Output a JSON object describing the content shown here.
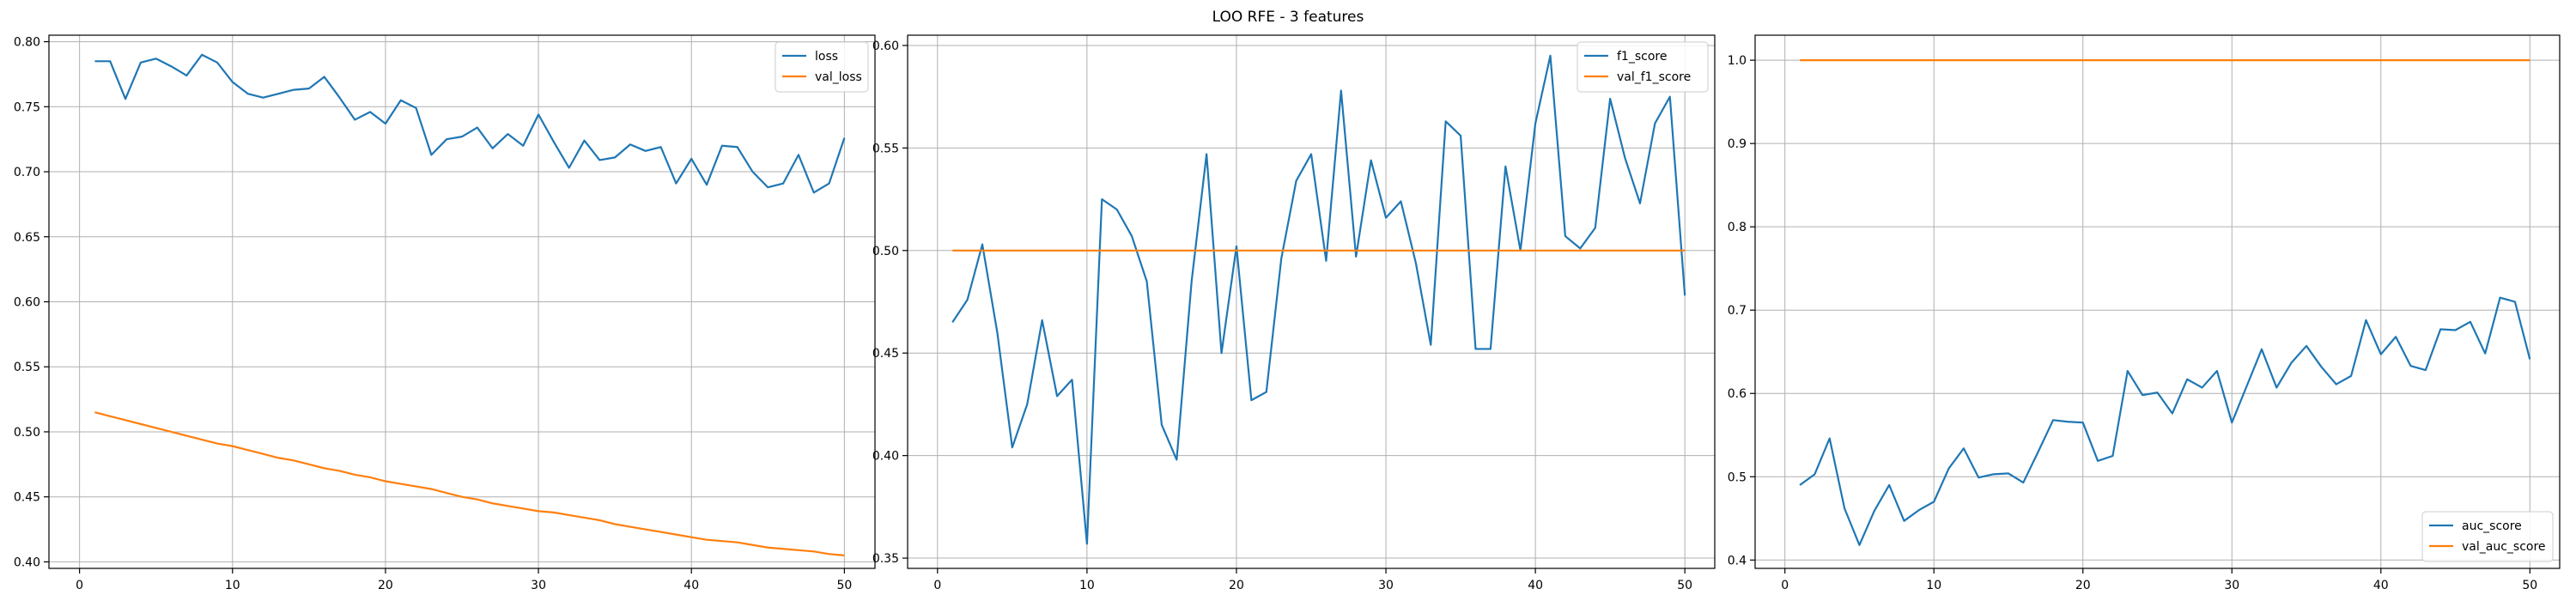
{
  "figure": {
    "title": "LOO RFE - 3 features"
  },
  "colors": {
    "blue": "#1f77b4",
    "orange": "#ff7f0e",
    "grid": "#b0b0b0"
  },
  "chart_data": [
    {
      "type": "line",
      "grid": true,
      "legend_position": "top-right",
      "xlim": [
        -2,
        52
      ],
      "ylim": [
        0.395,
        0.805
      ],
      "xticks": [
        0,
        10,
        20,
        30,
        40,
        50
      ],
      "yticks": [
        0.4,
        0.45,
        0.5,
        0.55,
        0.6,
        0.65,
        0.7,
        0.75,
        0.8
      ],
      "x": [
        1,
        2,
        3,
        4,
        5,
        6,
        7,
        8,
        9,
        10,
        11,
        12,
        13,
        14,
        15,
        16,
        17,
        18,
        19,
        20,
        21,
        22,
        23,
        24,
        25,
        26,
        27,
        28,
        29,
        30,
        31,
        32,
        33,
        34,
        35,
        36,
        37,
        38,
        39,
        40,
        41,
        42,
        43,
        44,
        45,
        46,
        47,
        48,
        49,
        50
      ],
      "series": [
        {
          "name": "loss",
          "color": "#1f77b4",
          "values": [
            0.785,
            0.785,
            0.756,
            0.784,
            0.787,
            0.781,
            0.774,
            0.79,
            0.784,
            0.769,
            0.76,
            0.757,
            0.76,
            0.763,
            0.764,
            0.773,
            0.757,
            0.74,
            0.746,
            0.737,
            0.755,
            0.749,
            0.713,
            0.725,
            0.727,
            0.734,
            0.718,
            0.729,
            0.72,
            0.744,
            0.723,
            0.703,
            0.724,
            0.709,
            0.711,
            0.721,
            0.716,
            0.719,
            0.691,
            0.71,
            0.69,
            0.72,
            0.719,
            0.7,
            0.688,
            0.691,
            0.713,
            0.684,
            0.691,
            0.726
          ]
        },
        {
          "name": "val_loss",
          "color": "#ff7f0e",
          "values": [
            0.515,
            0.512,
            0.509,
            0.506,
            0.503,
            0.5,
            0.497,
            0.494,
            0.491,
            0.489,
            0.486,
            0.483,
            0.48,
            0.478,
            0.475,
            0.472,
            0.47,
            0.467,
            0.465,
            0.462,
            0.46,
            0.458,
            0.456,
            0.453,
            0.45,
            0.448,
            0.445,
            0.443,
            0.441,
            0.439,
            0.438,
            0.436,
            0.434,
            0.432,
            0.429,
            0.427,
            0.425,
            0.423,
            0.421,
            0.419,
            0.417,
            0.416,
            0.415,
            0.413,
            0.411,
            0.41,
            0.409,
            0.408,
            0.406,
            0.405
          ]
        }
      ]
    },
    {
      "type": "line",
      "grid": true,
      "legend_position": "top-right",
      "xlim": [
        -2,
        52
      ],
      "ylim": [
        0.345,
        0.605
      ],
      "xticks": [
        0,
        10,
        20,
        30,
        40,
        50
      ],
      "yticks": [
        0.35,
        0.4,
        0.45,
        0.5,
        0.55,
        0.6
      ],
      "x": [
        1,
        2,
        3,
        4,
        5,
        6,
        7,
        8,
        9,
        10,
        11,
        12,
        13,
        14,
        15,
        16,
        17,
        18,
        19,
        20,
        21,
        22,
        23,
        24,
        25,
        26,
        27,
        28,
        29,
        30,
        31,
        32,
        33,
        34,
        35,
        36,
        37,
        38,
        39,
        40,
        41,
        42,
        43,
        44,
        45,
        46,
        47,
        48,
        49,
        50
      ],
      "series": [
        {
          "name": "f1_score",
          "color": "#1f77b4",
          "values": [
            0.465,
            0.476,
            0.503,
            0.46,
            0.404,
            0.425,
            0.466,
            0.429,
            0.437,
            0.357,
            0.525,
            0.52,
            0.507,
            0.485,
            0.415,
            0.398,
            0.485,
            0.547,
            0.45,
            0.502,
            0.427,
            0.431,
            0.496,
            0.534,
            0.547,
            0.495,
            0.578,
            0.497,
            0.544,
            0.516,
            0.524,
            0.494,
            0.454,
            0.563,
            0.556,
            0.452,
            0.452,
            0.541,
            0.5,
            0.562,
            0.595,
            0.507,
            0.501,
            0.511,
            0.574,
            0.545,
            0.523,
            0.562,
            0.575,
            0.478
          ]
        },
        {
          "name": "val_f1_score",
          "color": "#ff7f0e",
          "values": [
            0.5,
            0.5,
            0.5,
            0.5,
            0.5,
            0.5,
            0.5,
            0.5,
            0.5,
            0.5,
            0.5,
            0.5,
            0.5,
            0.5,
            0.5,
            0.5,
            0.5,
            0.5,
            0.5,
            0.5,
            0.5,
            0.5,
            0.5,
            0.5,
            0.5,
            0.5,
            0.5,
            0.5,
            0.5,
            0.5,
            0.5,
            0.5,
            0.5,
            0.5,
            0.5,
            0.5,
            0.5,
            0.5,
            0.5,
            0.5,
            0.5,
            0.5,
            0.5,
            0.5,
            0.5,
            0.5,
            0.5,
            0.5,
            0.5,
            0.5
          ]
        }
      ]
    },
    {
      "type": "line",
      "grid": true,
      "legend_position": "bottom-right",
      "xlim": [
        -2,
        52
      ],
      "ylim": [
        0.39,
        1.03
      ],
      "xticks": [
        0,
        10,
        20,
        30,
        40,
        50
      ],
      "yticks": [
        0.4,
        0.5,
        0.6,
        0.7,
        0.8,
        0.9,
        1.0
      ],
      "x": [
        1,
        2,
        3,
        4,
        5,
        6,
        7,
        8,
        9,
        10,
        11,
        12,
        13,
        14,
        15,
        16,
        17,
        18,
        19,
        20,
        21,
        22,
        23,
        24,
        25,
        26,
        27,
        28,
        29,
        30,
        31,
        32,
        33,
        34,
        35,
        36,
        37,
        38,
        39,
        40,
        41,
        42,
        43,
        44,
        45,
        46,
        47,
        48,
        49,
        50
      ],
      "series": [
        {
          "name": "auc_score",
          "color": "#1f77b4",
          "values": [
            0.49,
            0.503,
            0.546,
            0.462,
            0.418,
            0.459,
            0.49,
            0.447,
            0.46,
            0.47,
            0.51,
            0.534,
            0.499,
            0.503,
            0.504,
            0.493,
            0.53,
            0.568,
            0.566,
            0.565,
            0.519,
            0.525,
            0.627,
            0.598,
            0.601,
            0.576,
            0.617,
            0.607,
            0.627,
            0.565,
            0.609,
            0.653,
            0.607,
            0.637,
            0.657,
            0.632,
            0.611,
            0.621,
            0.688,
            0.647,
            0.668,
            0.633,
            0.628,
            0.677,
            0.676,
            0.686,
            0.648,
            0.715,
            0.71,
            0.641
          ]
        },
        {
          "name": "val_auc_score",
          "color": "#ff7f0e",
          "values": [
            1.0,
            1.0,
            1.0,
            1.0,
            1.0,
            1.0,
            1.0,
            1.0,
            1.0,
            1.0,
            1.0,
            1.0,
            1.0,
            1.0,
            1.0,
            1.0,
            1.0,
            1.0,
            1.0,
            1.0,
            1.0,
            1.0,
            1.0,
            1.0,
            1.0,
            1.0,
            1.0,
            1.0,
            1.0,
            1.0,
            1.0,
            1.0,
            1.0,
            1.0,
            1.0,
            1.0,
            1.0,
            1.0,
            1.0,
            1.0,
            1.0,
            1.0,
            1.0,
            1.0,
            1.0,
            1.0,
            1.0,
            1.0,
            1.0,
            1.0
          ]
        }
      ]
    }
  ]
}
